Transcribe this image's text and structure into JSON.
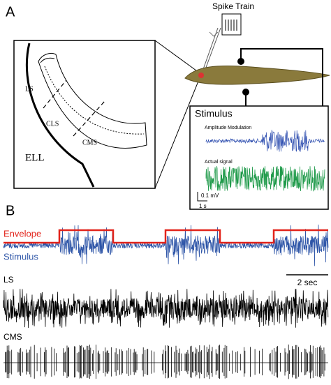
{
  "panel_a": {
    "label": "A",
    "spike_train": "Spike Train",
    "regions": [
      "LS",
      "CLS",
      "CMS",
      "ELL"
    ],
    "stimulus": {
      "title": "Stimulus",
      "am": "Amplitude Modulation",
      "actual": "Actual signal",
      "scale_v": "0.1 mV",
      "scale_t": "1 s"
    }
  },
  "panel_b": {
    "label": "B",
    "envelope": "Envelope",
    "stimulus": "Stimulus",
    "scale": "2 sec",
    "ls": "LS",
    "cms": "CMS"
  }
}
